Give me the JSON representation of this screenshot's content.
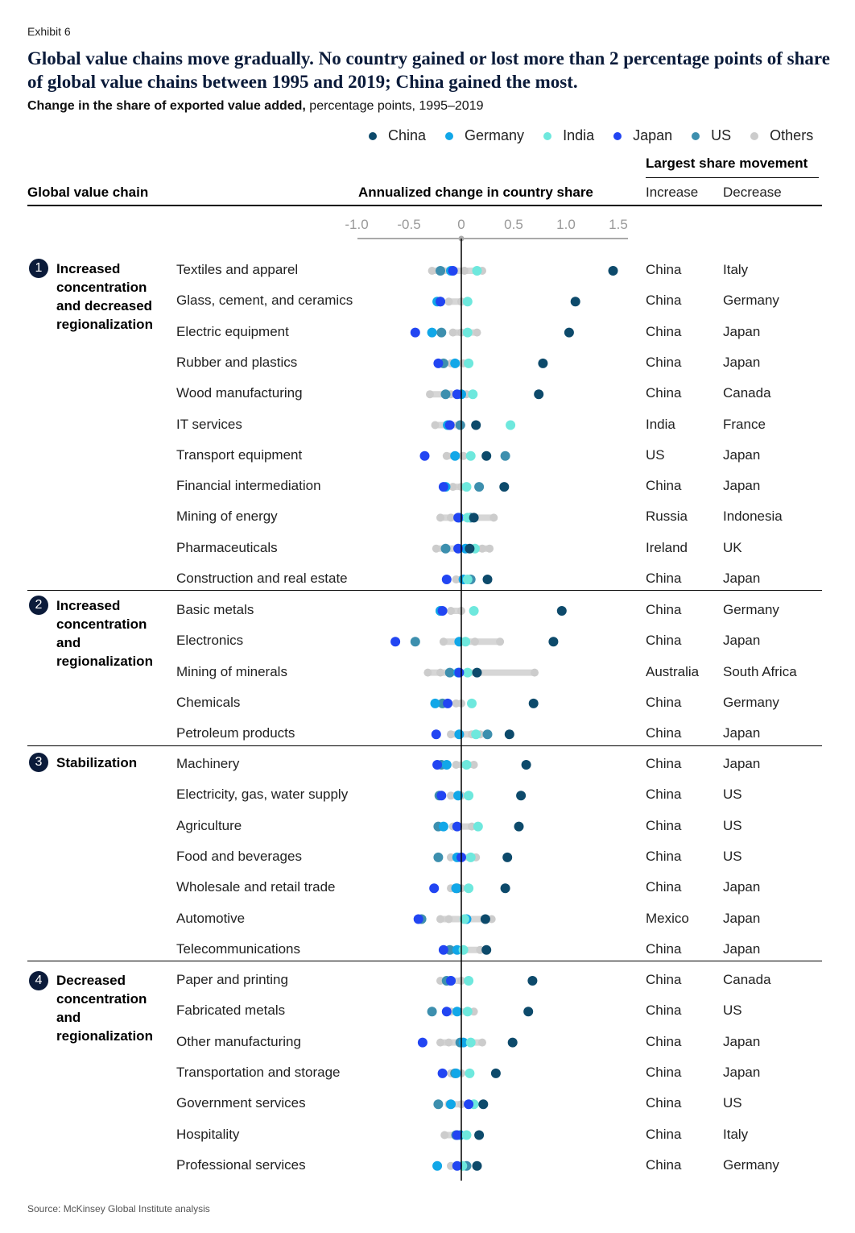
{
  "exhibit": "Exhibit 6",
  "title": "Global value chains move gradually. No country gained or lost more than 2 percentage points of share of global value chains between 1995 and 2019; China gained the most.",
  "subtitle_bold": "Change in the share of exported value added,",
  "subtitle_rest": " percentage points, 1995–2019",
  "headers": {
    "gvc": "Global value chain",
    "annualized": "Annualized change in country share",
    "largest": "Largest share movement",
    "increase": "Increase",
    "decrease": "Decrease"
  },
  "source": "Source: McKinsey Global Institute analysis",
  "groups": [
    {
      "number": "1",
      "title": "Increased concentration and decreased regionalization"
    },
    {
      "number": "2",
      "title": "Increased concentration and regionalization"
    },
    {
      "number": "3",
      "title": "Stabilization"
    },
    {
      "number": "4",
      "title": "Decreased concentration and regionalization"
    }
  ],
  "colors": {
    "China": "#0d4a6b",
    "Germany": "#11a7e8",
    "India": "#6ee8dd",
    "Japan": "#2245f2",
    "US": "#3d8fae",
    "Others": "#cccccc",
    "axis": "#000000"
  },
  "chart_data": {
    "type": "scatter",
    "xlim": [
      -1.0,
      1.5
    ],
    "x_ticks": [
      "-1.0",
      "-0.5",
      "0",
      "0.5",
      "1.0",
      "1.5"
    ],
    "x_tick_values": [
      -1.0,
      -0.5,
      0,
      0.5,
      1.0,
      1.5
    ],
    "series_names": [
      "China",
      "Germany",
      "India",
      "Japan",
      "US",
      "Others"
    ],
    "rows": [
      {
        "label": "Textiles and apparel",
        "group": 1,
        "increase": "China",
        "decrease": "Italy",
        "China": 1.45,
        "Germany": -0.1,
        "India": 0.15,
        "Japan": -0.08,
        "US": -0.2,
        "Others": [
          -0.28,
          -0.18,
          0.03,
          0.2
        ]
      },
      {
        "label": "Glass, cement, and ceramics",
        "group": 1,
        "increase": "China",
        "decrease": "Germany",
        "China": 1.09,
        "Germany": -0.23,
        "India": 0.06,
        "Japan": -0.2,
        "US": -0.2,
        "Others": [
          -0.12,
          0.0
        ]
      },
      {
        "label": "Electric equipment",
        "group": 1,
        "increase": "China",
        "decrease": "Japan",
        "China": 1.03,
        "Germany": -0.28,
        "India": 0.06,
        "Japan": -0.44,
        "US": -0.19,
        "Others": [
          -0.08,
          0.0,
          0.15
        ]
      },
      {
        "label": "Rubber and plastics",
        "group": 1,
        "increase": "China",
        "decrease": "Japan",
        "China": 0.78,
        "Germany": -0.06,
        "India": 0.07,
        "Japan": -0.22,
        "US": -0.17,
        "Others": [
          -0.1,
          0.02
        ]
      },
      {
        "label": "Wood manufacturing",
        "group": 1,
        "increase": "China",
        "decrease": "Canada",
        "China": 0.74,
        "Germany": 0.0,
        "India": 0.11,
        "Japan": -0.04,
        "US": -0.15,
        "Others": [
          -0.3,
          -0.1,
          0.05
        ]
      },
      {
        "label": "IT services",
        "group": 1,
        "increase": "India",
        "decrease": "France",
        "China": 0.14,
        "Germany": -0.13,
        "India": 0.47,
        "Japan": -0.11,
        "US": -0.01,
        "Others": [
          -0.25,
          0.0
        ]
      },
      {
        "label": "Transport equipment",
        "group": 1,
        "increase": "US",
        "decrease": "Japan",
        "China": 0.24,
        "Germany": -0.06,
        "India": 0.09,
        "Japan": -0.35,
        "US": 0.42,
        "Others": [
          -0.14,
          0.02
        ]
      },
      {
        "label": "Financial intermediation",
        "group": 1,
        "increase": "China",
        "decrease": "Japan",
        "China": 0.41,
        "Germany": -0.15,
        "India": 0.05,
        "Japan": -0.17,
        "US": 0.17,
        "Others": [
          -0.08,
          0.0
        ]
      },
      {
        "label": "Mining of energy",
        "group": 1,
        "increase": "Russia",
        "decrease": "Indonesia",
        "China": 0.12,
        "Germany": -0.02,
        "India": 0.06,
        "Japan": -0.03,
        "US": 0.09,
        "Others": [
          -0.2,
          -0.1,
          0.31
        ]
      },
      {
        "label": "Pharmaceuticals",
        "group": 1,
        "increase": "Ireland",
        "decrease": "UK",
        "China": 0.08,
        "Germany": 0.04,
        "India": 0.13,
        "Japan": -0.03,
        "US": -0.15,
        "Others": [
          -0.24,
          0.2,
          0.27
        ]
      },
      {
        "label": "Construction and real estate",
        "group": 1,
        "increase": "China",
        "decrease": "Japan",
        "China": 0.25,
        "Germany": 0.02,
        "India": 0.06,
        "Japan": -0.14,
        "US": 0.09,
        "Others": [
          -0.05,
          0.0
        ]
      },
      {
        "label": "Basic metals",
        "group": 2,
        "increase": "China",
        "decrease": "Germany",
        "China": 0.96,
        "Germany": -0.2,
        "India": 0.12,
        "Japan": -0.18,
        "US": -0.2,
        "Others": [
          -0.1,
          0.0
        ]
      },
      {
        "label": "Electronics",
        "group": 2,
        "increase": "China",
        "decrease": "Japan",
        "China": 0.88,
        "Germany": -0.02,
        "India": 0.04,
        "Japan": -0.63,
        "US": -0.44,
        "Others": [
          -0.17,
          0.13,
          0.37
        ]
      },
      {
        "label": "Mining of minerals",
        "group": 2,
        "increase": "Australia",
        "decrease": "South Africa",
        "China": 0.15,
        "Germany": -0.03,
        "India": 0.06,
        "Japan": -0.02,
        "US": -0.11,
        "Others": [
          -0.32,
          -0.2,
          0.7
        ]
      },
      {
        "label": "Chemicals",
        "group": 2,
        "increase": "China",
        "decrease": "Germany",
        "China": 0.69,
        "Germany": -0.25,
        "India": 0.1,
        "Japan": -0.13,
        "US": -0.18,
        "Others": [
          -0.05,
          0.0
        ]
      },
      {
        "label": "Petroleum products",
        "group": 2,
        "increase": "China",
        "decrease": "Japan",
        "China": 0.46,
        "Germany": -0.02,
        "India": 0.14,
        "Japan": -0.24,
        "US": 0.25,
        "Others": [
          -0.1,
          0.1,
          0.18
        ]
      },
      {
        "label": "Machinery",
        "group": 3,
        "increase": "China",
        "decrease": "Japan",
        "China": 0.62,
        "Germany": -0.14,
        "India": 0.05,
        "Japan": -0.23,
        "US": -0.19,
        "Others": [
          -0.05,
          0.12
        ]
      },
      {
        "label": "Electricity, gas, water supply",
        "group": 3,
        "increase": "China",
        "decrease": "US",
        "China": 0.57,
        "Germany": -0.03,
        "India": 0.07,
        "Japan": -0.19,
        "US": -0.21,
        "Others": [
          -0.1,
          0.0
        ]
      },
      {
        "label": "Agriculture",
        "group": 3,
        "increase": "China",
        "decrease": "US",
        "China": 0.55,
        "Germany": -0.17,
        "India": 0.16,
        "Japan": -0.04,
        "US": -0.22,
        "Others": [
          -0.08,
          0.1
        ]
      },
      {
        "label": "Food and beverages",
        "group": 3,
        "increase": "China",
        "decrease": "US",
        "China": 0.44,
        "Germany": -0.04,
        "India": 0.09,
        "Japan": 0.0,
        "US": -0.22,
        "Others": [
          -0.1,
          0.14
        ]
      },
      {
        "label": "Wholesale and retail trade",
        "group": 3,
        "increase": "China",
        "decrease": "Japan",
        "China": 0.42,
        "Germany": -0.05,
        "India": 0.07,
        "Japan": -0.26,
        "US": -0.04,
        "Others": [
          -0.1,
          0.0
        ]
      },
      {
        "label": "Automotive",
        "group": 3,
        "increase": "Mexico",
        "decrease": "Japan",
        "China": 0.23,
        "Germany": 0.05,
        "India": 0.03,
        "Japan": -0.41,
        "US": -0.38,
        "Others": [
          -0.2,
          -0.12,
          0.29
        ]
      },
      {
        "label": "Telecommunications",
        "group": 3,
        "increase": "China",
        "decrease": "Japan",
        "China": 0.24,
        "Germany": -0.04,
        "India": 0.02,
        "Japan": -0.17,
        "US": -0.11,
        "Others": [
          -0.08,
          0.18
        ]
      },
      {
        "label": "Paper and printing",
        "group": 4,
        "increase": "China",
        "decrease": "Canada",
        "China": 0.68,
        "Germany": -0.1,
        "India": 0.07,
        "Japan": -0.1,
        "US": -0.14,
        "Others": [
          -0.2,
          0.0
        ]
      },
      {
        "label": "Fabricated metals",
        "group": 4,
        "increase": "China",
        "decrease": "US",
        "China": 0.64,
        "Germany": -0.04,
        "India": 0.06,
        "Japan": -0.14,
        "US": -0.28,
        "Others": [
          -0.1,
          0.12
        ]
      },
      {
        "label": "Other manufacturing",
        "group": 4,
        "increase": "China",
        "decrease": "Japan",
        "China": 0.49,
        "Germany": 0.02,
        "India": 0.09,
        "Japan": -0.37,
        "US": -0.01,
        "Others": [
          -0.2,
          -0.12,
          0.2
        ]
      },
      {
        "label": "Transportation and storage",
        "group": 4,
        "increase": "China",
        "decrease": "Japan",
        "China": 0.33,
        "Germany": -0.05,
        "India": 0.08,
        "Japan": -0.18,
        "US": -0.06,
        "Others": [
          -0.1,
          0.0
        ]
      },
      {
        "label": "Government services",
        "group": 4,
        "increase": "China",
        "decrease": "US",
        "China": 0.21,
        "Germany": -0.1,
        "India": 0.12,
        "Japan": 0.07,
        "US": -0.22,
        "Others": [
          -0.12,
          0.0
        ]
      },
      {
        "label": "Hospitality",
        "group": 4,
        "increase": "China",
        "decrease": "Italy",
        "China": 0.17,
        "Germany": -0.01,
        "India": 0.05,
        "Japan": -0.04,
        "US": -0.05,
        "Others": [
          -0.16,
          0.0
        ]
      },
      {
        "label": "Professional services",
        "group": 4,
        "increase": "China",
        "decrease": "Germany",
        "China": 0.15,
        "Germany": -0.23,
        "India": 0.01,
        "Japan": -0.04,
        "US": 0.05,
        "Others": [
          -0.1,
          0.0
        ]
      }
    ]
  },
  "legend": [
    {
      "name": "China",
      "color": "#0d4a6b"
    },
    {
      "name": "Germany",
      "color": "#11a7e8"
    },
    {
      "name": "India",
      "color": "#6ee8dd"
    },
    {
      "name": "Japan",
      "color": "#2245f2"
    },
    {
      "name": "US",
      "color": "#3d8fae"
    },
    {
      "name": "Others",
      "color": "#cccccc"
    }
  ]
}
